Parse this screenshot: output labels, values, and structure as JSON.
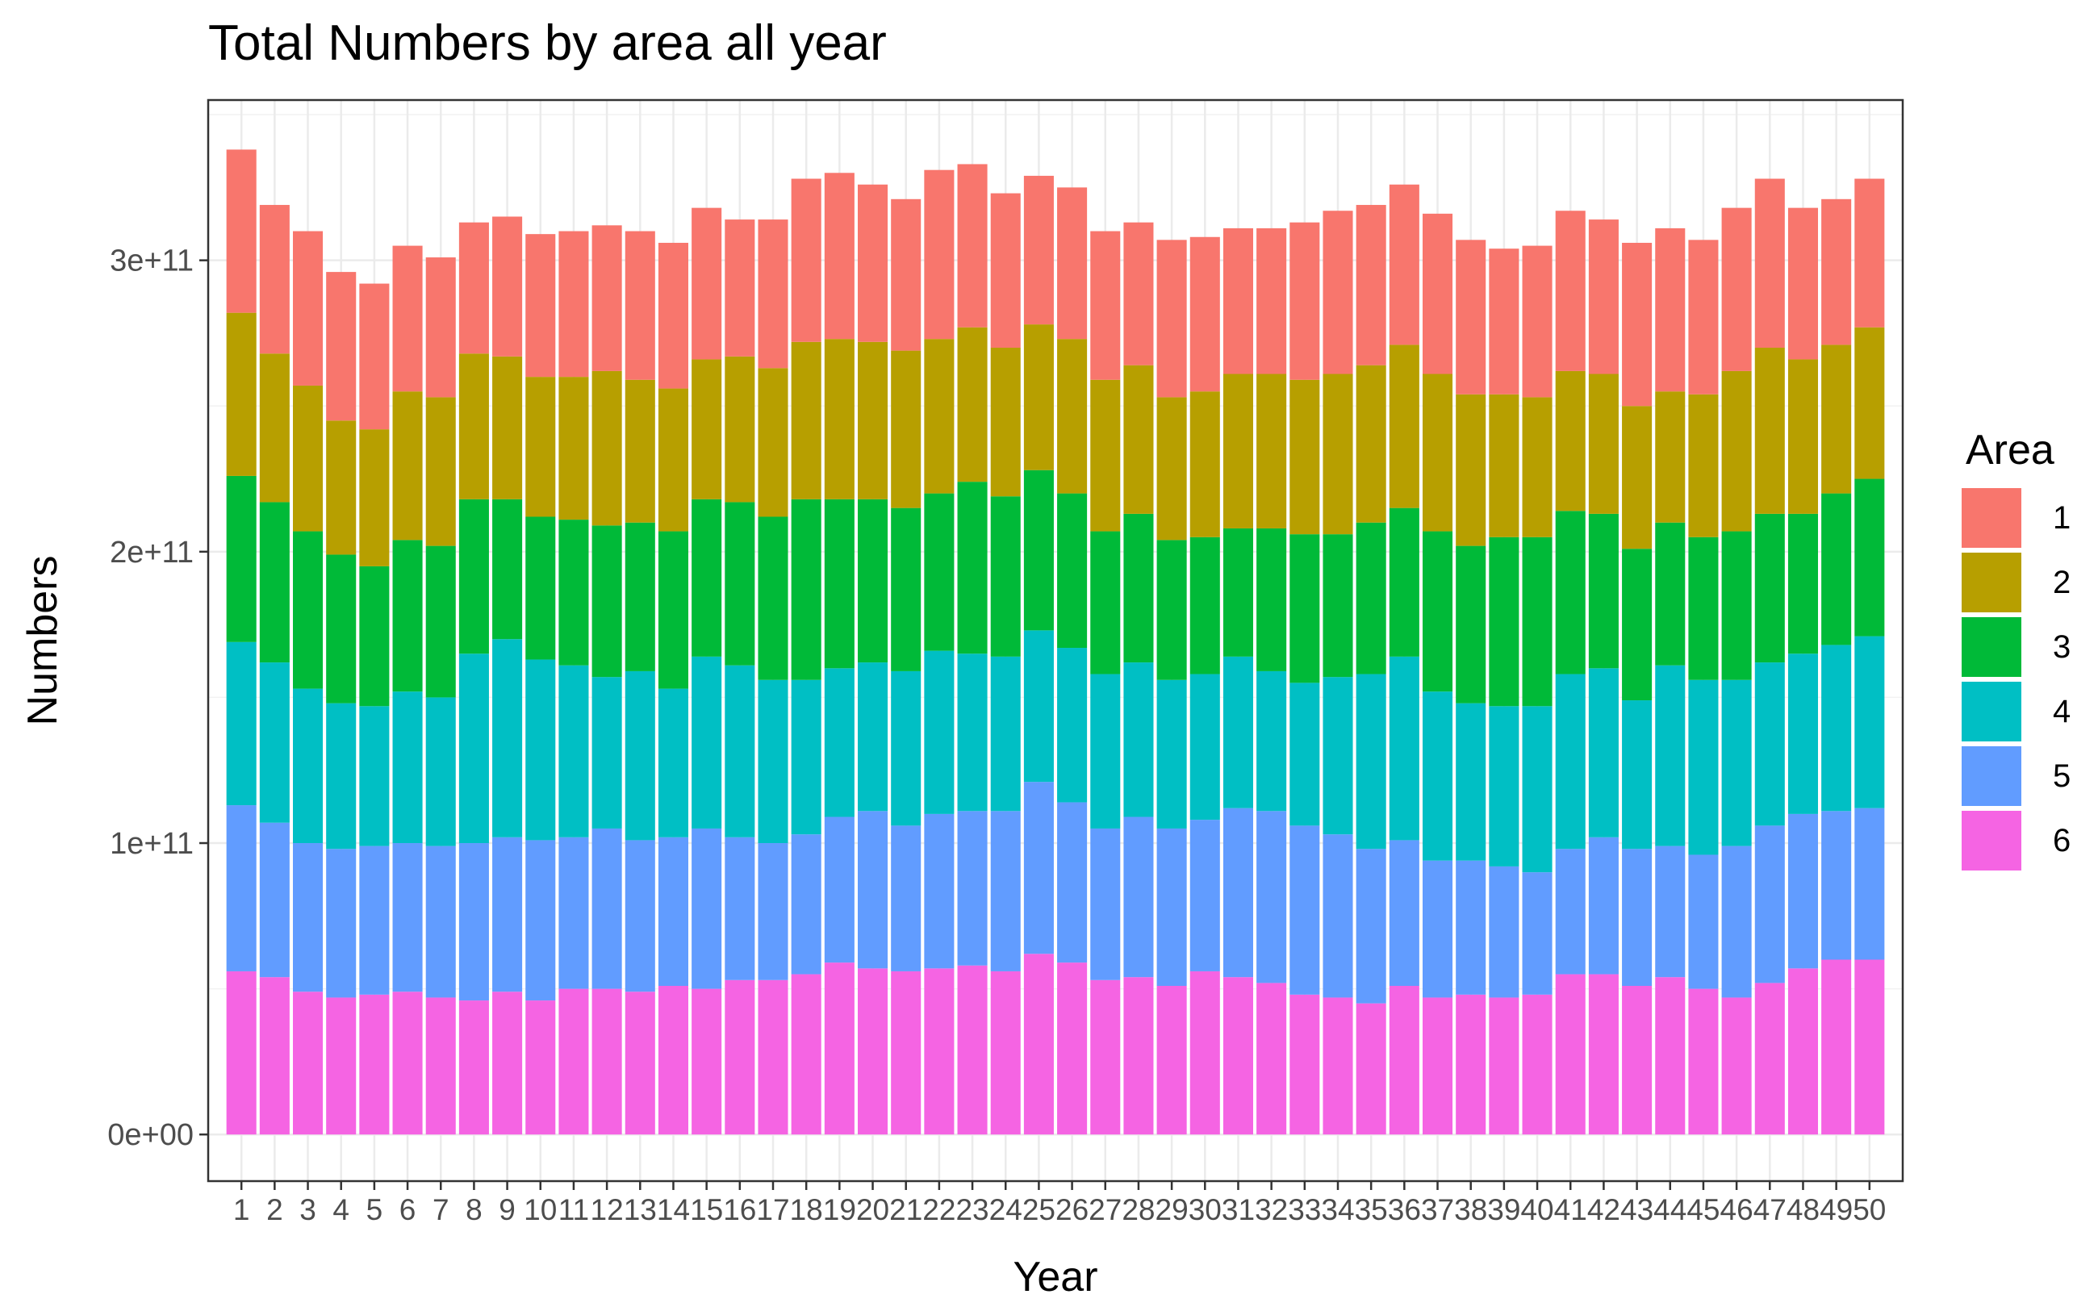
{
  "chart_data": {
    "type": "bar",
    "stacked": true,
    "title": "Total Numbers by area all year",
    "xlabel": "Year",
    "ylabel": "Numbers",
    "ylim": [
      -16000000000.0,
      355000000000.0
    ],
    "yticks": [
      0,
      100000000000,
      200000000000,
      300000000000
    ],
    "ytick_labels": [
      "0e+00",
      "1e+11",
      "2e+11",
      "3e+11"
    ],
    "grid": true,
    "legend_title": "Area",
    "legend_position": "right",
    "categories": [
      "1",
      "2",
      "3",
      "4",
      "5",
      "6",
      "7",
      "8",
      "9",
      "10",
      "11",
      "12",
      "13",
      "14",
      "15",
      "16",
      "17",
      "18",
      "19",
      "20",
      "21",
      "22",
      "23",
      "24",
      "25",
      "26",
      "27",
      "28",
      "29",
      "30",
      "31",
      "32",
      "33",
      "34",
      "35",
      "36",
      "37",
      "38",
      "39",
      "40",
      "41",
      "42",
      "43",
      "44",
      "45",
      "46",
      "47",
      "48",
      "49",
      "50"
    ],
    "series": [
      {
        "name": "6",
        "color": "#F564E3",
        "values": [
          56000000000.0,
          54000000000.0,
          49000000000.0,
          47000000000.0,
          48000000000.0,
          49000000000.0,
          47000000000.0,
          46000000000.0,
          49000000000.0,
          46000000000.0,
          50000000000.0,
          50000000000.0,
          49000000000.0,
          51000000000.0,
          50000000000.0,
          53000000000.0,
          53000000000.0,
          55000000000.0,
          59000000000.0,
          57000000000.0,
          56000000000.0,
          57000000000.0,
          58000000000.0,
          56000000000.0,
          62000000000.0,
          59000000000.0,
          53000000000.0,
          54000000000.0,
          51000000000.0,
          56000000000.0,
          54000000000.0,
          52000000000.0,
          48000000000.0,
          47000000000.0,
          45000000000.0,
          51000000000.0,
          47000000000.0,
          48000000000.0,
          47000000000.0,
          48000000000.0,
          55000000000.0,
          55000000000.0,
          51000000000.0,
          54000000000.0,
          50000000000.0,
          47000000000.0,
          52000000000.0,
          57000000000.0,
          60000000000.0,
          60000000000.0
        ]
      },
      {
        "name": "5",
        "color": "#619CFF",
        "values": [
          57000000000.0,
          53000000000.0,
          51000000000.0,
          51000000000.0,
          51000000000.0,
          51000000000.0,
          52000000000.0,
          54000000000.0,
          53000000000.0,
          55000000000.0,
          52000000000.0,
          55000000000.0,
          52000000000.0,
          51000000000.0,
          55000000000.0,
          49000000000.0,
          47000000000.0,
          48000000000.0,
          50000000000.0,
          54000000000.0,
          50000000000.0,
          53000000000.0,
          53000000000.0,
          55000000000.0,
          59000000000.0,
          55000000000.0,
          52000000000.0,
          55000000000.0,
          54000000000.0,
          52000000000.0,
          58000000000.0,
          59000000000.0,
          58000000000.0,
          56000000000.0,
          53000000000.0,
          50000000000.0,
          47000000000.0,
          46000000000.0,
          45000000000.0,
          42000000000.0,
          43000000000.0,
          47000000000.0,
          47000000000.0,
          45000000000.0,
          46000000000.0,
          52000000000.0,
          54000000000.0,
          53000000000.0,
          51000000000.0,
          52000000000.0
        ]
      },
      {
        "name": "4",
        "color": "#00BFC4",
        "values": [
          56000000000.0,
          55000000000.0,
          53000000000.0,
          50000000000.0,
          48000000000.0,
          52000000000.0,
          51000000000.0,
          65000000000.0,
          68000000000.0,
          62000000000.0,
          59000000000.0,
          52000000000.0,
          58000000000.0,
          51000000000.0,
          59000000000.0,
          59000000000.0,
          56000000000.0,
          53000000000.0,
          51000000000.0,
          51000000000.0,
          53000000000.0,
          56000000000.0,
          54000000000.0,
          53000000000.0,
          52000000000.0,
          53000000000.0,
          53000000000.0,
          53000000000.0,
          51000000000.0,
          50000000000.0,
          52000000000.0,
          48000000000.0,
          49000000000.0,
          54000000000.0,
          60000000000.0,
          63000000000.0,
          58000000000.0,
          54000000000.0,
          55000000000.0,
          57000000000.0,
          60000000000.0,
          58000000000.0,
          51000000000.0,
          62000000000.0,
          60000000000.0,
          57000000000.0,
          56000000000.0,
          55000000000.0,
          57000000000.0,
          59000000000.0
        ]
      },
      {
        "name": "3",
        "color": "#00BA38",
        "values": [
          57000000000.0,
          55000000000.0,
          54000000000.0,
          51000000000.0,
          48000000000.0,
          52000000000.0,
          52000000000.0,
          53000000000.0,
          48000000000.0,
          49000000000.0,
          50000000000.0,
          52000000000.0,
          51000000000.0,
          54000000000.0,
          54000000000.0,
          56000000000.0,
          56000000000.0,
          62000000000.0,
          58000000000.0,
          56000000000.0,
          56000000000.0,
          54000000000.0,
          59000000000.0,
          55000000000.0,
          55000000000.0,
          53000000000.0,
          49000000000.0,
          51000000000.0,
          48000000000.0,
          47000000000.0,
          44000000000.0,
          49000000000.0,
          51000000000.0,
          49000000000.0,
          52000000000.0,
          51000000000.0,
          55000000000.0,
          54000000000.0,
          58000000000.0,
          58000000000.0,
          56000000000.0,
          53000000000.0,
          52000000000.0,
          49000000000.0,
          49000000000.0,
          51000000000.0,
          51000000000.0,
          48000000000.0,
          52000000000.0,
          54000000000.0
        ]
      },
      {
        "name": "2",
        "color": "#B79F00",
        "values": [
          56000000000.0,
          51000000000.0,
          50000000000.0,
          46000000000.0,
          47000000000.0,
          51000000000.0,
          51000000000.0,
          50000000000.0,
          49000000000.0,
          48000000000.0,
          49000000000.0,
          53000000000.0,
          49000000000.0,
          49000000000.0,
          48000000000.0,
          50000000000.0,
          51000000000.0,
          54000000000.0,
          55000000000.0,
          54000000000.0,
          54000000000.0,
          53000000000.0,
          53000000000.0,
          51000000000.0,
          50000000000.0,
          53000000000.0,
          52000000000.0,
          51000000000.0,
          49000000000.0,
          50000000000.0,
          53000000000.0,
          53000000000.0,
          53000000000.0,
          55000000000.0,
          54000000000.0,
          56000000000.0,
          54000000000.0,
          52000000000.0,
          49000000000.0,
          48000000000.0,
          48000000000.0,
          48000000000.0,
          49000000000.0,
          45000000000.0,
          49000000000.0,
          55000000000.0,
          57000000000.0,
          53000000000.0,
          51000000000.0,
          52000000000.0
        ]
      },
      {
        "name": "1",
        "color": "#F8766D",
        "values": [
          56000000000.0,
          51000000000.0,
          53000000000.0,
          51000000000.0,
          50000000000.0,
          50000000000.0,
          48000000000.0,
          45000000000.0,
          48000000000.0,
          49000000000.0,
          50000000000.0,
          50000000000.0,
          51000000000.0,
          50000000000.0,
          52000000000.0,
          47000000000.0,
          51000000000.0,
          56000000000.0,
          57000000000.0,
          54000000000.0,
          52000000000.0,
          58000000000.0,
          56000000000.0,
          53000000000.0,
          51000000000.0,
          52000000000.0,
          51000000000.0,
          49000000000.0,
          54000000000.0,
          53000000000.0,
          50000000000.0,
          50000000000.0,
          54000000000.0,
          56000000000.0,
          55000000000.0,
          55000000000.0,
          55000000000.0,
          53000000000.0,
          50000000000.0,
          52000000000.0,
          55000000000.0,
          53000000000.0,
          56000000000.0,
          56000000000.0,
          53000000000.0,
          56000000000.0,
          58000000000.0,
          52000000000.0,
          50000000000.0,
          51000000000.0
        ]
      }
    ]
  }
}
